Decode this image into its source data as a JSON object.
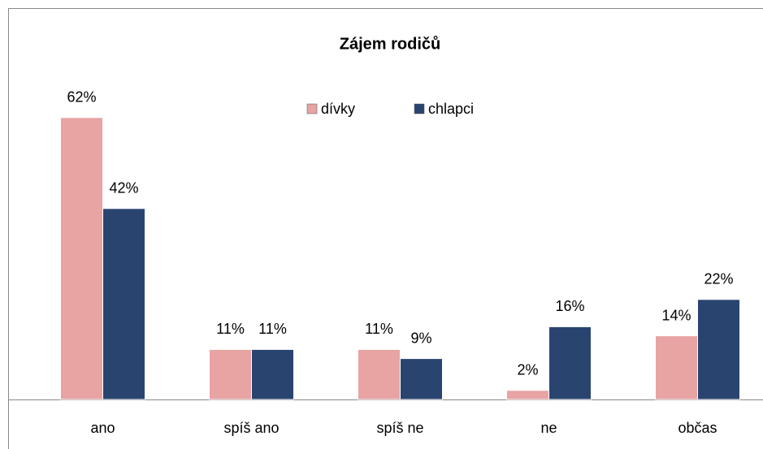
{
  "chart_data": {
    "type": "bar",
    "title": "Zájem rodičů",
    "categories": [
      "ano",
      "spíš ano",
      "spíš ne",
      "ne",
      "občas"
    ],
    "series": [
      {
        "name": "dívky",
        "color": "#e8a3a3",
        "values": [
          62,
          11,
          11,
          2,
          14
        ],
        "value_labels": [
          "62%",
          "11%",
          "11%",
          "2%",
          "14%"
        ]
      },
      {
        "name": "chlapci",
        "color": "#2a4470",
        "values": [
          42,
          11,
          9,
          16,
          22
        ],
        "value_labels": [
          "42%",
          "11%",
          "9%",
          "16%",
          "22%"
        ]
      }
    ],
    "legend": "top"
  }
}
